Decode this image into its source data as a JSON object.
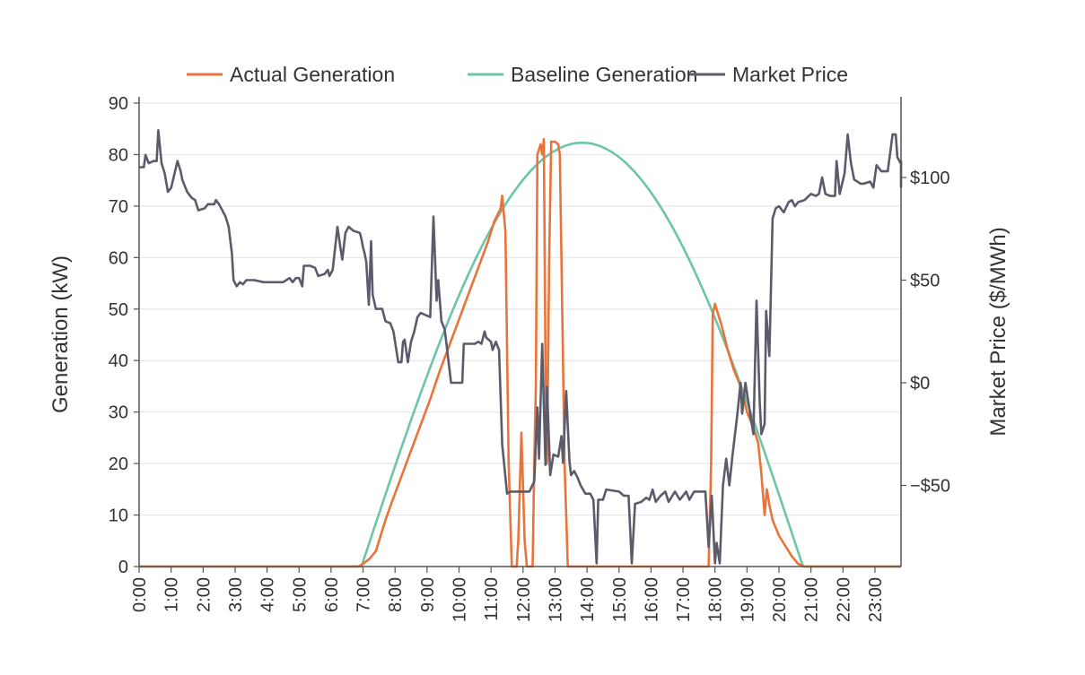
{
  "chart_data": {
    "type": "line",
    "title": "",
    "xlabel": "",
    "x_ticks": [
      "0:00",
      "1:00",
      "2:00",
      "3:00",
      "4:00",
      "5:00",
      "6:00",
      "7:00",
      "8:00",
      "9:00",
      "10:00",
      "11:00",
      "12:00",
      "13:00",
      "14:00",
      "15:00",
      "16:00",
      "17:00",
      "18:00",
      "19:00",
      "20:00",
      "21:00",
      "22:00",
      "23:00"
    ],
    "xlim_hours": [
      0,
      23.85
    ],
    "y_left": {
      "label": "Generation (kW)",
      "ylim": [
        0,
        90
      ],
      "ticks": [
        0,
        10,
        20,
        30,
        40,
        50,
        60,
        70,
        80,
        90
      ],
      "tick_labels": [
        "0",
        "10",
        "20",
        "30",
        "40",
        "50",
        "60",
        "70",
        "80",
        "90"
      ]
    },
    "y_right": {
      "label": "Market Price ($/MWh)",
      "ylim": [
        -89,
        137
      ],
      "ticks": [
        -50,
        0,
        50,
        100
      ],
      "tick_labels": [
        "−$50",
        "$0",
        "$50",
        "$100"
      ]
    },
    "grid": true,
    "legend": {
      "placement": "top-center",
      "entries": [
        {
          "name": "Actual Generation",
          "color": "#e8743b"
        },
        {
          "name": "Baseline Generation",
          "color": "#6cc4a9"
        },
        {
          "name": "Market Price",
          "color": "#5b5b6b"
        }
      ]
    },
    "series": [
      {
        "name": "Actual Generation",
        "axis": "left",
        "color": "#e8743b",
        "points": [
          [
            0,
            0
          ],
          [
            6.85,
            0
          ],
          [
            7.0,
            0.5
          ],
          [
            7.2,
            1.5
          ],
          [
            7.4,
            3
          ],
          [
            7.5,
            5
          ],
          [
            7.7,
            9
          ],
          [
            7.9,
            12.5
          ],
          [
            8.2,
            17.5
          ],
          [
            8.5,
            22.5
          ],
          [
            8.8,
            27.5
          ],
          [
            9.1,
            32.5
          ],
          [
            9.4,
            38
          ],
          [
            9.7,
            43
          ],
          [
            10.0,
            48
          ],
          [
            10.3,
            53
          ],
          [
            10.6,
            58
          ],
          [
            10.9,
            63
          ],
          [
            11.1,
            67
          ],
          [
            11.3,
            69.5
          ],
          [
            11.35,
            72
          ],
          [
            11.45,
            65
          ],
          [
            11.55,
            20
          ],
          [
            11.65,
            0
          ],
          [
            11.8,
            0
          ],
          [
            11.85,
            5
          ],
          [
            11.95,
            26
          ],
          [
            12.05,
            5
          ],
          [
            12.12,
            0
          ],
          [
            12.3,
            0
          ],
          [
            12.35,
            20
          ],
          [
            12.4,
            35
          ],
          [
            12.45,
            80
          ],
          [
            12.55,
            82
          ],
          [
            12.6,
            80
          ],
          [
            12.65,
            83
          ],
          [
            12.7,
            40
          ],
          [
            12.75,
            20
          ],
          [
            12.82,
            60
          ],
          [
            12.88,
            82.5
          ],
          [
            13.0,
            82.5
          ],
          [
            13.1,
            82
          ],
          [
            13.15,
            80
          ],
          [
            13.2,
            60
          ],
          [
            13.3,
            20
          ],
          [
            13.4,
            0
          ],
          [
            17.8,
            0
          ],
          [
            17.88,
            20
          ],
          [
            17.93,
            49
          ],
          [
            18.0,
            51
          ],
          [
            18.2,
            47
          ],
          [
            18.4,
            42
          ],
          [
            18.6,
            38
          ],
          [
            18.8,
            35
          ],
          [
            19.0,
            30
          ],
          [
            19.2,
            27
          ],
          [
            19.35,
            24
          ],
          [
            19.45,
            18
          ],
          [
            19.55,
            10
          ],
          [
            19.62,
            15
          ],
          [
            19.7,
            12
          ],
          [
            19.8,
            9
          ],
          [
            20.0,
            6
          ],
          [
            20.2,
            4
          ],
          [
            20.4,
            2
          ],
          [
            20.6,
            0.5
          ],
          [
            20.8,
            0
          ],
          [
            23.85,
            0
          ]
        ]
      },
      {
        "name": "Baseline Generation",
        "axis": "left",
        "color": "#6cc4a9",
        "model": {
          "shape": "sine",
          "start_hour": 6.95,
          "end_hour": 20.75,
          "peak_kw": 82.3
        }
      },
      {
        "name": "Market Price",
        "axis": "right",
        "color": "#5b5b6b",
        "points": [
          [
            0,
            105
          ],
          [
            0.15,
            105
          ],
          [
            0.2,
            111
          ],
          [
            0.3,
            107
          ],
          [
            0.45,
            108
          ],
          [
            0.55,
            108
          ],
          [
            0.6,
            123
          ],
          [
            0.7,
            107
          ],
          [
            0.8,
            102
          ],
          [
            0.9,
            93
          ],
          [
            1.0,
            95
          ],
          [
            1.2,
            108
          ],
          [
            1.3,
            103
          ],
          [
            1.35,
            99
          ],
          [
            1.5,
            93
          ],
          [
            1.65,
            90
          ],
          [
            1.75,
            89
          ],
          [
            1.85,
            84
          ],
          [
            2.05,
            85
          ],
          [
            2.15,
            87
          ],
          [
            2.35,
            87
          ],
          [
            2.4,
            89
          ],
          [
            2.5,
            87
          ],
          [
            2.6,
            84
          ],
          [
            2.7,
            81
          ],
          [
            2.8,
            76
          ],
          [
            2.9,
            63
          ],
          [
            2.95,
            50
          ],
          [
            3.05,
            47
          ],
          [
            3.15,
            49
          ],
          [
            3.25,
            48
          ],
          [
            3.35,
            50
          ],
          [
            3.6,
            50
          ],
          [
            3.9,
            49
          ],
          [
            4.2,
            49
          ],
          [
            4.5,
            49
          ],
          [
            4.7,
            51
          ],
          [
            4.8,
            49
          ],
          [
            4.9,
            51
          ],
          [
            5.0,
            51
          ],
          [
            5.1,
            47
          ],
          [
            5.15,
            57
          ],
          [
            5.35,
            57
          ],
          [
            5.5,
            56
          ],
          [
            5.6,
            52
          ],
          [
            5.8,
            53
          ],
          [
            5.9,
            55
          ],
          [
            5.95,
            52
          ],
          [
            6.05,
            55
          ],
          [
            6.2,
            76
          ],
          [
            6.3,
            65
          ],
          [
            6.35,
            60
          ],
          [
            6.45,
            73
          ],
          [
            6.55,
            76
          ],
          [
            6.7,
            74
          ],
          [
            6.9,
            73
          ],
          [
            6.95,
            70
          ],
          [
            7.0,
            66
          ],
          [
            7.05,
            63
          ],
          [
            7.1,
            59
          ],
          [
            7.18,
            38
          ],
          [
            7.25,
            69
          ],
          [
            7.3,
            43
          ],
          [
            7.4,
            36
          ],
          [
            7.6,
            36
          ],
          [
            7.7,
            30
          ],
          [
            7.85,
            29
          ],
          [
            7.95,
            25
          ],
          [
            8.0,
            20
          ],
          [
            8.1,
            10
          ],
          [
            8.2,
            10
          ],
          [
            8.25,
            20
          ],
          [
            8.3,
            21
          ],
          [
            8.4,
            10
          ],
          [
            8.5,
            20
          ],
          [
            8.6,
            25
          ],
          [
            8.7,
            32
          ],
          [
            8.8,
            34
          ],
          [
            8.95,
            33
          ],
          [
            9.1,
            32
          ],
          [
            9.2,
            81
          ],
          [
            9.3,
            40
          ],
          [
            9.35,
            50
          ],
          [
            9.45,
            30
          ],
          [
            9.55,
            26
          ],
          [
            9.6,
            20
          ],
          [
            9.75,
            0
          ],
          [
            10.1,
            0
          ],
          [
            10.15,
            19
          ],
          [
            10.35,
            19
          ],
          [
            10.5,
            19
          ],
          [
            10.6,
            20
          ],
          [
            10.7,
            19
          ],
          [
            10.8,
            25
          ],
          [
            10.85,
            22
          ],
          [
            11.0,
            20
          ],
          [
            11.05,
            16
          ],
          [
            11.15,
            20
          ],
          [
            11.25,
            16
          ],
          [
            11.35,
            -30
          ],
          [
            11.5,
            -54
          ],
          [
            11.6,
            -53
          ],
          [
            12.2,
            -53
          ],
          [
            12.35,
            -48
          ],
          [
            12.45,
            -12
          ],
          [
            12.5,
            -37
          ],
          [
            12.6,
            19
          ],
          [
            12.7,
            -40
          ],
          [
            12.75,
            -2
          ],
          [
            12.85,
            -45
          ],
          [
            12.95,
            -35
          ],
          [
            13.1,
            -36
          ],
          [
            13.2,
            -26
          ],
          [
            13.25,
            -39
          ],
          [
            13.35,
            -4
          ],
          [
            13.45,
            -38
          ],
          [
            13.5,
            -45
          ],
          [
            13.6,
            -43
          ],
          [
            13.7,
            -46
          ],
          [
            13.8,
            -50
          ],
          [
            13.95,
            -54
          ],
          [
            14.1,
            -54
          ],
          [
            14.2,
            -57
          ],
          [
            14.3,
            -88
          ],
          [
            14.35,
            -57
          ],
          [
            14.5,
            -57
          ],
          [
            14.6,
            -52
          ],
          [
            15.0,
            -53
          ],
          [
            15.15,
            -55
          ],
          [
            15.3,
            -55
          ],
          [
            15.4,
            -88
          ],
          [
            15.5,
            -59
          ],
          [
            15.7,
            -58
          ],
          [
            15.85,
            -56
          ],
          [
            15.95,
            -57
          ],
          [
            16.05,
            -52
          ],
          [
            16.15,
            -58
          ],
          [
            16.3,
            -55
          ],
          [
            16.45,
            -53
          ],
          [
            16.55,
            -58
          ],
          [
            16.75,
            -53
          ],
          [
            16.9,
            -57
          ],
          [
            17.1,
            -53
          ],
          [
            17.2,
            -57
          ],
          [
            17.35,
            -53
          ],
          [
            17.7,
            -53
          ],
          [
            17.8,
            -80
          ],
          [
            17.9,
            -55
          ],
          [
            18.0,
            -88
          ],
          [
            18.05,
            -78
          ],
          [
            18.15,
            -88
          ],
          [
            18.25,
            -50
          ],
          [
            18.35,
            -37
          ],
          [
            18.45,
            -50
          ],
          [
            18.55,
            -35
          ],
          [
            18.7,
            -15
          ],
          [
            18.8,
            0
          ],
          [
            18.85,
            -15
          ],
          [
            18.95,
            0
          ],
          [
            19.05,
            -10
          ],
          [
            19.2,
            -25
          ],
          [
            19.3,
            40
          ],
          [
            19.4,
            -10
          ],
          [
            19.45,
            -25
          ],
          [
            19.55,
            -20
          ],
          [
            19.6,
            35
          ],
          [
            19.7,
            13
          ],
          [
            19.8,
            80
          ],
          [
            19.9,
            85
          ],
          [
            20.0,
            86
          ],
          [
            20.15,
            83
          ],
          [
            20.3,
            88
          ],
          [
            20.4,
            89
          ],
          [
            20.5,
            86
          ],
          [
            20.6,
            88
          ],
          [
            20.8,
            89
          ],
          [
            21.0,
            92
          ],
          [
            21.15,
            91
          ],
          [
            21.25,
            92
          ],
          [
            21.35,
            100
          ],
          [
            21.45,
            92
          ],
          [
            21.6,
            91
          ],
          [
            21.75,
            91
          ],
          [
            21.8,
            108
          ],
          [
            21.9,
            92
          ],
          [
            22.05,
            102
          ],
          [
            22.15,
            121
          ],
          [
            22.25,
            107
          ],
          [
            22.35,
            99
          ],
          [
            22.55,
            97
          ],
          [
            22.65,
            97
          ],
          [
            22.85,
            98
          ],
          [
            22.95,
            95
          ],
          [
            23.05,
            106
          ],
          [
            23.2,
            103
          ],
          [
            23.4,
            103
          ],
          [
            23.55,
            121
          ],
          [
            23.65,
            121
          ],
          [
            23.7,
            110
          ],
          [
            23.8,
            107
          ],
          [
            23.9,
            108
          ],
          [
            24.0,
            104
          ],
          [
            24.15,
            95
          ]
        ]
      }
    ]
  }
}
